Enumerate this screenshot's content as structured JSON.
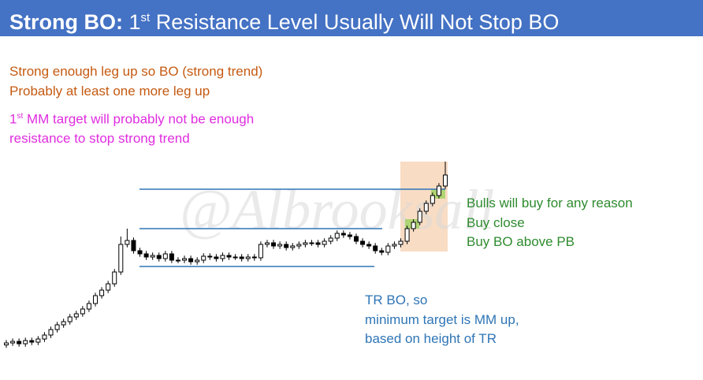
{
  "title": {
    "label": "Strong BO:",
    "num": "1",
    "sup": "st",
    "rest": " Resistance Level Usually Will Not Stop BO"
  },
  "notes": {
    "orange": [
      "Strong enough leg up so BO (strong trend)",
      "Probably at least one more leg up"
    ],
    "magenta": {
      "num": "1",
      "sup": "st",
      "rest": " MM target will probably not be enough",
      "line2": "resistance to stop strong trend"
    },
    "green": [
      "Bulls will buy for any reason",
      "Buy close",
      "Buy BO above PB"
    ],
    "blue": [
      "TR BO, so",
      "minimum target is MM up,",
      "based on height of TR"
    ]
  },
  "watermark": "@Albrooksall",
  "chart_data": {
    "type": "candlestick",
    "ylim": [
      0,
      100
    ],
    "levels": [
      84,
      64,
      44.8
    ],
    "level_color": "#2e75b6",
    "open": [
      5,
      6,
      6.8,
      5.6,
      7.2,
      6.4,
      8,
      10,
      12.8,
      15.2,
      16.8,
      19.2,
      20.8,
      23.2,
      26,
      30,
      32.8,
      36,
      42,
      56,
      58,
      52.8,
      51.2,
      49.6,
      50.4,
      48.8,
      51.2,
      48,
      48,
      48.8,
      47.2,
      48,
      50,
      49.6,
      48.8,
      50.4,
      49.6,
      49.6,
      48.8,
      49.6,
      49.2,
      56,
      56.8,
      55.2,
      56,
      54.4,
      55.2,
      56,
      56.8,
      56.8,
      56,
      57.6,
      59.2,
      61.6,
      60.8,
      60,
      57.6,
      56,
      55.2,
      52.8,
      52,
      55.2,
      56,
      57.6,
      64,
      67.2,
      72.8,
      76.8,
      80.8,
      85.6
    ],
    "high": [
      7.5,
      8.3,
      8.3,
      8.7,
      8.7,
      9.5,
      11.5,
      14.3,
      16.7,
      18.3,
      20.7,
      22.3,
      24.7,
      27.5,
      31.5,
      34.3,
      37.5,
      43.5,
      60,
      64,
      59.5,
      54.3,
      52.7,
      51.9,
      51.9,
      52.7,
      52.7,
      49.5,
      50.3,
      50.3,
      49.5,
      51.5,
      51.5,
      51.1,
      51.9,
      51.9,
      51.1,
      51.1,
      51.1,
      51.1,
      57.5,
      58.3,
      58.3,
      57.5,
      57.5,
      56.7,
      57.5,
      58.3,
      58.3,
      58.3,
      59.1,
      60.7,
      63.1,
      63.1,
      62.3,
      61.5,
      59.1,
      57.5,
      56.7,
      54.3,
      56.7,
      57.5,
      59.1,
      65.5,
      68.7,
      74.3,
      78.3,
      82.3,
      87.1,
      98
    ],
    "low": [
      3.5,
      4.5,
      4.1,
      4.1,
      4.9,
      4.9,
      6.5,
      8.5,
      11.3,
      13.7,
      15.3,
      17.7,
      19.3,
      21.7,
      24.5,
      28.5,
      31.3,
      34.5,
      40.5,
      54.5,
      51.3,
      49.7,
      48.1,
      48.1,
      47.3,
      47.3,
      46.5,
      46.5,
      46.5,
      45.7,
      45.7,
      46.5,
      48.1,
      47.3,
      47.3,
      48.1,
      48.1,
      47.3,
      47.3,
      47.7,
      47.7,
      54.5,
      53.7,
      53.7,
      52.9,
      52.9,
      53.7,
      54.5,
      55.3,
      54.5,
      54.5,
      56.1,
      57.7,
      59.3,
      58.5,
      56.1,
      54.5,
      53.7,
      51.3,
      50.5,
      50.5,
      53.7,
      54.5,
      56.1,
      62.5,
      65.7,
      71.3,
      75.3,
      79.3,
      84.1
    ],
    "close": [
      6,
      6.8,
      5.6,
      7.2,
      6.4,
      8,
      10,
      12.8,
      15.2,
      16.8,
      19.2,
      20.8,
      23.2,
      26,
      30,
      32.8,
      36,
      42,
      56,
      58,
      52.8,
      51.2,
      49.6,
      50.4,
      48.8,
      51.2,
      48,
      48,
      48.8,
      47.2,
      48,
      50,
      49.6,
      48.8,
      50.4,
      49.6,
      49.6,
      48.8,
      49.6,
      49.2,
      56,
      56.8,
      55.2,
      56,
      54.4,
      55.2,
      56,
      56.8,
      56.8,
      56,
      57.6,
      59.2,
      61.6,
      60.8,
      60,
      57.6,
      56,
      55.2,
      52.8,
      52,
      55.2,
      56,
      57.6,
      64,
      67.2,
      72.8,
      76.8,
      80.8,
      85.6,
      91.2
    ]
  }
}
